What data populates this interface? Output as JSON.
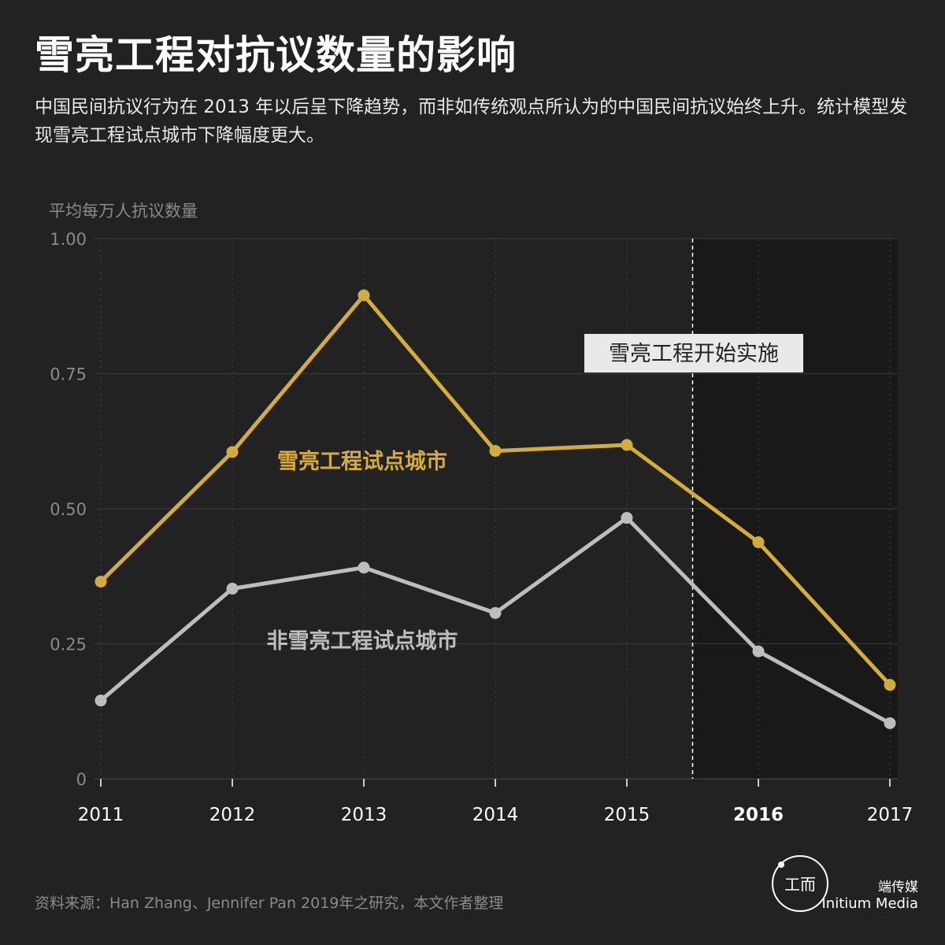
{
  "title": "雪亮工程对抗议数量的影响",
  "subtitle": "中国民间抗议行为在 2013 年以后呈下降趋势，而非如传统观点所认为的中国民间抗议始终上升。统计模型发现雪亮工程试点城市下降幅度更大。",
  "source": "资料来源：Han Zhang、Jennifer Pan 2019年之研究，本文作者整理",
  "brand": {
    "cn": "端传媒",
    "en": "Initium Media",
    "logo_icon": "initium-logo-icon"
  },
  "colors": {
    "background": "#222222",
    "shaded": "#191919",
    "pilot": "#d4ac3a",
    "nonpilot": "#bdbdbd",
    "grid": "#3c3c3c",
    "axis_text": "#8a8a8a"
  },
  "chart_data": {
    "type": "line",
    "ylabel": "平均每万人抗议数量",
    "ylim": [
      0,
      1.0
    ],
    "yticks": [
      0,
      0.25,
      0.5,
      0.75,
      1.0
    ],
    "ytick_labels": [
      "0",
      "0.25",
      "0.50",
      "0.75",
      "1.00"
    ],
    "x": [
      "2011",
      "2012",
      "2013",
      "2014",
      "2015",
      "2016",
      "2017"
    ],
    "x_bold": [
      "2016"
    ],
    "grid": true,
    "series": [
      {
        "name": "雪亮工程试点城市",
        "color": "#d4ac3a",
        "values": [
          0.365,
          0.605,
          0.895,
          0.607,
          0.618,
          0.438,
          0.174
        ]
      },
      {
        "name": "非雪亮工程试点城市",
        "color": "#bdbdbd",
        "values": [
          0.145,
          0.352,
          0.391,
          0.307,
          0.483,
          0.236,
          0.103
        ]
      }
    ],
    "annotation": {
      "text": "雪亮工程开始实施",
      "x": 2015.5
    },
    "shaded_from": 2015.5
  }
}
